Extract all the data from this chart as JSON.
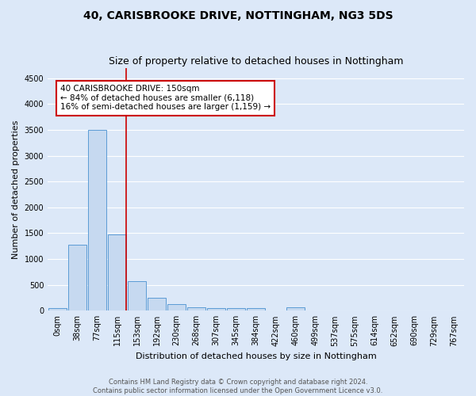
{
  "title1": "40, CARISBROOKE DRIVE, NOTTINGHAM, NG3 5DS",
  "title2": "Size of property relative to detached houses in Nottingham",
  "xlabel": "Distribution of detached houses by size in Nottingham",
  "ylabel": "Number of detached properties",
  "bin_labels": [
    "0sqm",
    "38sqm",
    "77sqm",
    "115sqm",
    "153sqm",
    "192sqm",
    "230sqm",
    "268sqm",
    "307sqm",
    "345sqm",
    "384sqm",
    "422sqm",
    "460sqm",
    "499sqm",
    "537sqm",
    "575sqm",
    "614sqm",
    "652sqm",
    "690sqm",
    "729sqm",
    "767sqm"
  ],
  "bar_heights": [
    50,
    1270,
    3500,
    1480,
    570,
    250,
    120,
    70,
    50,
    50,
    50,
    0,
    60,
    0,
    0,
    0,
    0,
    0,
    0,
    0,
    0
  ],
  "bar_color": "#c6d9f0",
  "bar_edge_color": "#5b9bd5",
  "property_bin_index": 3,
  "annotation_text1": "40 CARISBROOKE DRIVE: 150sqm",
  "annotation_text2": "← 84% of detached houses are smaller (6,118)",
  "annotation_text3": "16% of semi-detached houses are larger (1,159) →",
  "annotation_box_color": "#ffffff",
  "annotation_box_edge": "#cc0000",
  "vline_color": "#cc0000",
  "ylim": [
    0,
    4700
  ],
  "yticks": [
    0,
    500,
    1000,
    1500,
    2000,
    2500,
    3000,
    3500,
    4000,
    4500
  ],
  "footer1": "Contains HM Land Registry data © Crown copyright and database right 2024.",
  "footer2": "Contains public sector information licensed under the Open Government Licence v3.0.",
  "bg_color": "#dce8f8",
  "grid_color": "#ffffff",
  "title_fontsize": 10,
  "subtitle_fontsize": 9,
  "ylabel_fontsize": 8,
  "xlabel_fontsize": 8,
  "tick_fontsize": 7,
  "annot_fontsize": 7.5,
  "footer_fontsize": 6
}
